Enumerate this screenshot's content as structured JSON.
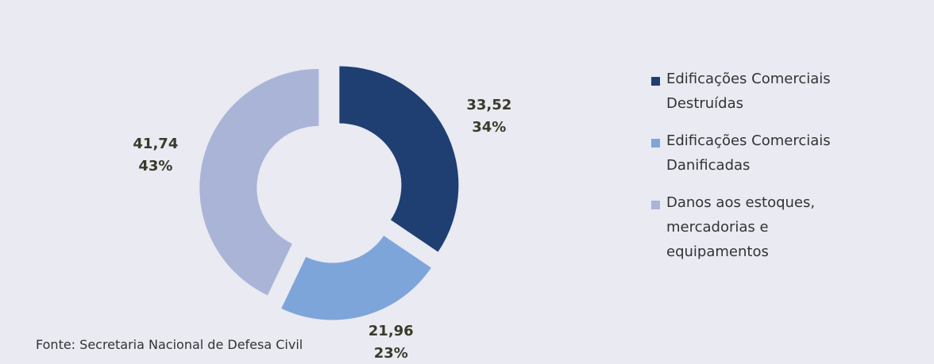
{
  "chart_data": {
    "type": "donut",
    "categories": [
      "Edificações Comerciais Destruídas",
      "Edificações Comerciais Danificadas",
      "Danos aos estoques, mercadorias e equipamentos"
    ],
    "values": [
      33.52,
      21.96,
      41.74
    ],
    "value_labels": [
      "33,52",
      "21,96",
      "41,74"
    ],
    "percent_labels": [
      "34%",
      "23%",
      "43%"
    ],
    "colors": [
      "#1f3f73",
      "#7ea5da",
      "#a9b4d6"
    ],
    "legend": "right",
    "source": "Fonte:  Secretaria Nacional de Defesa Civil"
  }
}
